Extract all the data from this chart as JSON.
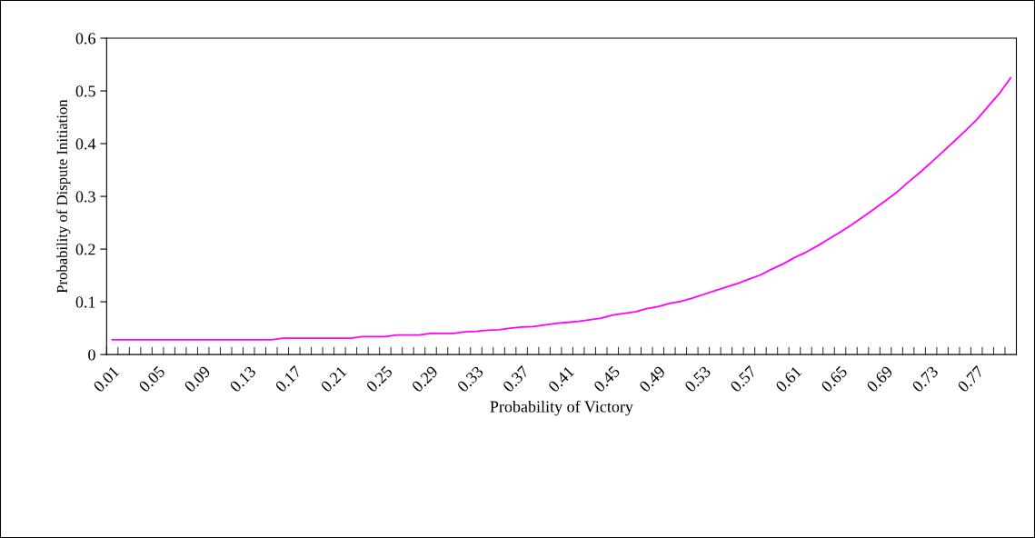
{
  "chart_data": {
    "type": "line",
    "xlabel": "Probability of Victory",
    "ylabel": "Probability of Dispute Initiation",
    "categories": [
      "0.01",
      null,
      null,
      null,
      "0.05",
      null,
      null,
      null,
      "0.09",
      null,
      null,
      null,
      "0.13",
      null,
      null,
      null,
      "0.17",
      null,
      null,
      null,
      "0.21",
      null,
      null,
      null,
      "0.25",
      null,
      null,
      null,
      "0.29",
      null,
      null,
      null,
      "0.33",
      null,
      null,
      null,
      "0.37",
      null,
      null,
      null,
      "0.41",
      null,
      null,
      null,
      "0.45",
      null,
      null,
      null,
      "0.49",
      null,
      null,
      null,
      "0.53",
      null,
      null,
      null,
      "0.57",
      null,
      null,
      null,
      "0.61",
      null,
      null,
      null,
      "0.65",
      null,
      null,
      null,
      "0.69",
      null,
      null,
      null,
      "0.73",
      null,
      null,
      null,
      "0.77",
      null,
      null,
      null
    ],
    "series": [
      {
        "color": "#ff00ff",
        "values": [
          0.028,
          0.028,
          0.028,
          0.028,
          0.028,
          0.028,
          0.028,
          0.028,
          0.028,
          0.028,
          0.028,
          0.028,
          0.028,
          0.028,
          0.028,
          0.031,
          0.031,
          0.031,
          0.031,
          0.031,
          0.031,
          0.031,
          0.034,
          0.034,
          0.034,
          0.037,
          0.037,
          0.037,
          0.04,
          0.04,
          0.04,
          0.043,
          0.044,
          0.046,
          0.047,
          0.05,
          0.052,
          0.053,
          0.056,
          0.059,
          0.061,
          0.063,
          0.066,
          0.069,
          0.075,
          0.078,
          0.081,
          0.087,
          0.091,
          0.097,
          0.101,
          0.107,
          0.114,
          0.121,
          0.128,
          0.135,
          0.143,
          0.151,
          0.162,
          0.172,
          0.184,
          0.194,
          0.206,
          0.219,
          0.232,
          0.246,
          0.261,
          0.276,
          0.292,
          0.308,
          0.327,
          0.345,
          0.364,
          0.384,
          0.404,
          0.424,
          0.445,
          0.47,
          0.495,
          0.525
        ]
      }
    ],
    "ylim": [
      0,
      0.6
    ],
    "yticks": [
      0,
      0.1,
      0.2,
      0.3,
      0.4,
      0.5,
      0.6
    ],
    "grid": false,
    "marker": "none",
    "line_style": "solid"
  }
}
